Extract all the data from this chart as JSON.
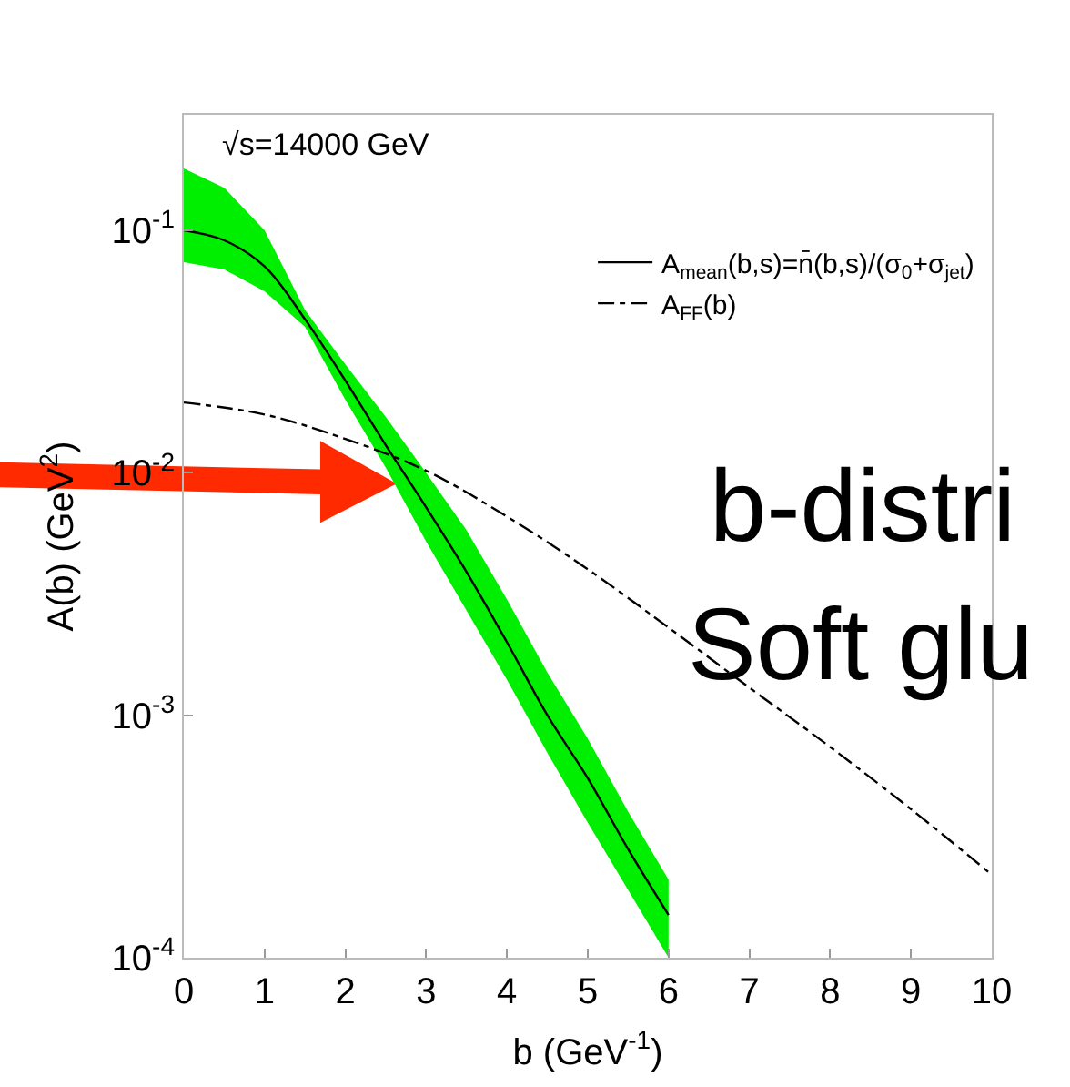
{
  "chart_data": {
    "type": "line",
    "xlabel": "b (GeV$^{-1}$)",
    "ylabel": "A(b) (GeV$^{2}$)",
    "xlim": [
      0,
      10
    ],
    "xticks": [
      0,
      1,
      2,
      3,
      4,
      5,
      6,
      7,
      8,
      9,
      10
    ],
    "ylim": [
      0.0001,
      0.3
    ],
    "yticks": [
      {
        "value": 0.0001,
        "label": "10$^{-4}$"
      },
      {
        "value": 0.001,
        "label": "10$^{-3}$"
      },
      {
        "value": 0.01,
        "label": "10$^{-2}$"
      },
      {
        "value": 0.1,
        "label": "10$^{-1}$"
      }
    ],
    "log": "y",
    "grid": false,
    "legend": "top right",
    "marker": "none",
    "annotations": [
      "√s=14000 GeV",
      "b-distri",
      "Soft glu"
    ],
    "series": [
      {
        "name": "A$_{mean}$(b,s)=n̄(b,s)/(σ$_{0}$+σ$_{jet}$)",
        "color": "#000000",
        "line_style": "solid",
        "x": [
          0,
          0.5,
          1,
          1.5,
          2,
          2.5,
          3,
          3.5,
          4,
          4.5,
          5,
          5.5,
          6
        ],
        "values": [
          0.1,
          0.091,
          0.071,
          0.043,
          0.024,
          0.013,
          0.0072,
          0.0039,
          0.002,
          0.001,
          0.00055,
          0.00028,
          0.00015
        ],
        "lower": [
          0.074,
          0.069,
          0.056,
          0.04,
          0.02,
          0.0105,
          0.0052,
          0.0027,
          0.0014,
          0.0007,
          0.00036,
          0.00019,
          0.0001
        ],
        "upper": [
          0.18,
          0.15,
          0.1,
          0.047,
          0.028,
          0.017,
          0.01,
          0.0058,
          0.003,
          0.0015,
          0.0008,
          0.0004,
          0.00021
        ]
      },
      {
        "name": "A$_{FF}$(b)",
        "color": "#000000",
        "line_style": "dashdot",
        "x": [
          0,
          1,
          2,
          3,
          4,
          5,
          6,
          7,
          8,
          9,
          10
        ],
        "values": [
          0.0195,
          0.0174,
          0.0138,
          0.0102,
          0.0066,
          0.004,
          0.0023,
          0.0013,
          0.00074,
          0.00041,
          0.00022
        ]
      }
    ]
  }
}
